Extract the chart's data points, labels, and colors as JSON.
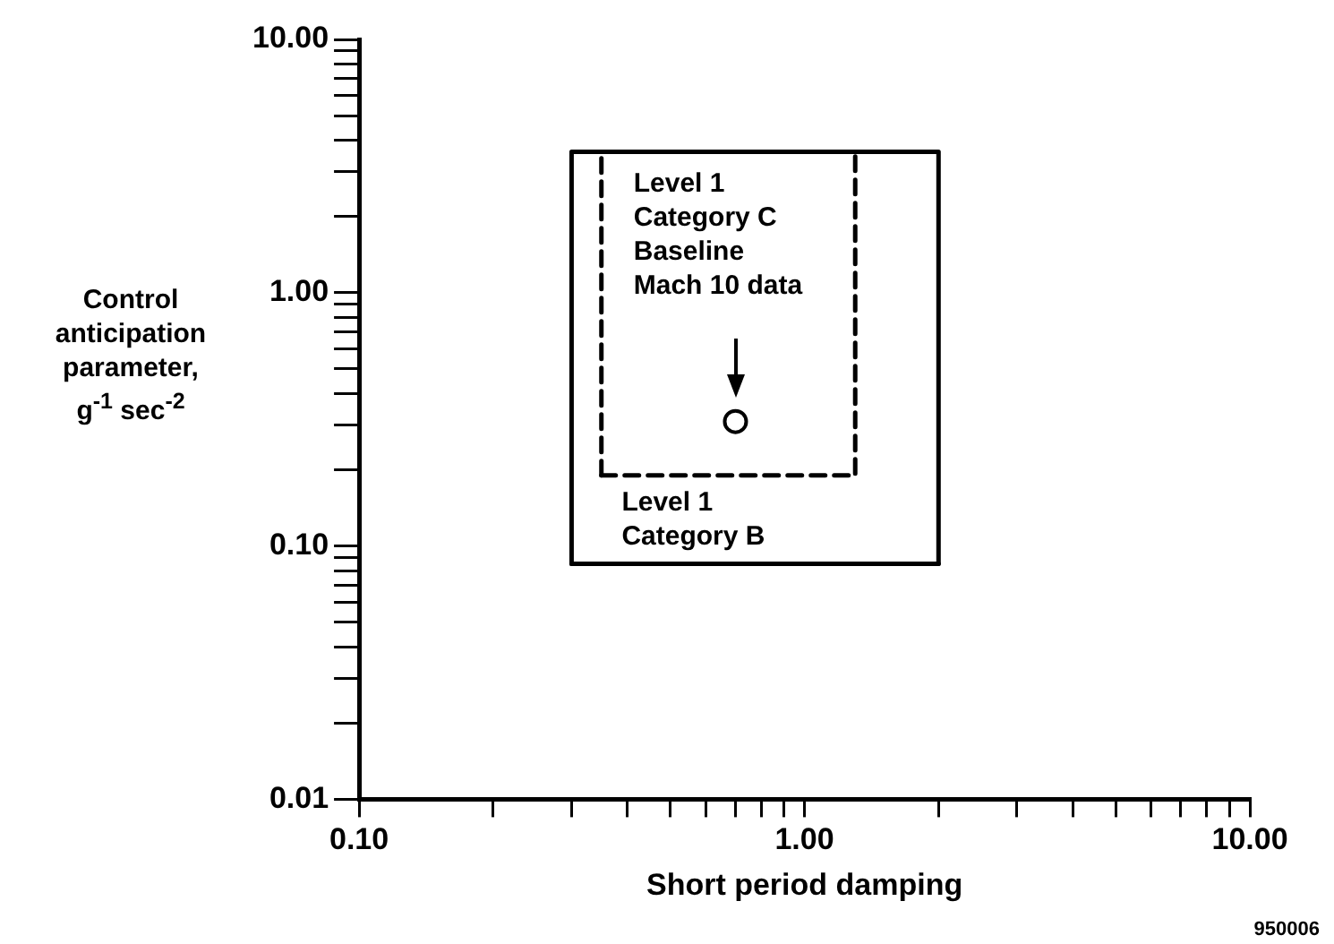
{
  "chart_data": {
    "type": "line",
    "xlabel": "Short period damping",
    "ylabel": "Control\nanticipation\nparameter,\ng$^{-1}$ sec$^{-2}$",
    "log": "xy",
    "grid": false,
    "legend": false,
    "xlim": [
      0.1,
      10
    ],
    "ylim": [
      0.01,
      10
    ],
    "xticks": [
      {
        "value": 0.1,
        "label": "0.10"
      },
      {
        "value": 0.2,
        "label": null
      },
      {
        "value": 0.3,
        "label": null
      },
      {
        "value": 0.4,
        "label": null
      },
      {
        "value": 0.5,
        "label": null
      },
      {
        "value": 0.6,
        "label": null
      },
      {
        "value": 0.7,
        "label": null
      },
      {
        "value": 0.8,
        "label": null
      },
      {
        "value": 0.9,
        "label": null
      },
      {
        "value": 1,
        "label": "1.00"
      },
      {
        "value": 2,
        "label": null
      },
      {
        "value": 3,
        "label": null
      },
      {
        "value": 4,
        "label": null
      },
      {
        "value": 5,
        "label": null
      },
      {
        "value": 6,
        "label": null
      },
      {
        "value": 7,
        "label": null
      },
      {
        "value": 8,
        "label": null
      },
      {
        "value": 9,
        "label": null
      },
      {
        "value": 10,
        "label": "10.00"
      }
    ],
    "yticks": [
      {
        "value": 0.01,
        "label": "0.01"
      },
      {
        "value": 0.02,
        "label": null
      },
      {
        "value": 0.03,
        "label": null
      },
      {
        "value": 0.04,
        "label": null
      },
      {
        "value": 0.05,
        "label": null
      },
      {
        "value": 0.06,
        "label": null
      },
      {
        "value": 0.07,
        "label": null
      },
      {
        "value": 0.08,
        "label": null
      },
      {
        "value": 0.09,
        "label": null
      },
      {
        "value": 0.1,
        "label": "0.10"
      },
      {
        "value": 0.2,
        "label": null
      },
      {
        "value": 0.3,
        "label": null
      },
      {
        "value": 0.4,
        "label": null
      },
      {
        "value": 0.5,
        "label": null
      },
      {
        "value": 0.6,
        "label": null
      },
      {
        "value": 0.7,
        "label": null
      },
      {
        "value": 0.8,
        "label": null
      },
      {
        "value": 0.9,
        "label": null
      },
      {
        "value": 1,
        "label": "1.00"
      },
      {
        "value": 2,
        "label": null
      },
      {
        "value": 3,
        "label": null
      },
      {
        "value": 4,
        "label": null
      },
      {
        "value": 5,
        "label": null
      },
      {
        "value": 6,
        "label": null
      },
      {
        "value": 7,
        "label": null
      },
      {
        "value": 8,
        "label": null
      },
      {
        "value": 9,
        "label": null
      },
      {
        "value": 10,
        "label": "10.00"
      }
    ],
    "series": [
      {
        "color": "#000000",
        "line_style": "solid",
        "x": [
          0.3,
          0.3,
          2,
          2
        ],
        "values": [
          0.085,
          3.6,
          3.6,
          0.085
        ]
      },
      {
        "color": "#000000",
        "line_style": "solid",
        "x": [
          0.3,
          2
        ],
        "values": [
          0.085,
          0.085
        ]
      },
      {
        "color": "#000000",
        "line_style": "dashed",
        "x": [
          0.35,
          0.35,
          1.3,
          1.3
        ],
        "values": [
          0.19,
          3.6,
          3.6,
          0.19
        ]
      },
      {
        "color": "#000000",
        "line_style": "dashed",
        "x": [
          0.35,
          1.3
        ],
        "values": [
          0.19,
          0.19
        ]
      },
      {
        "type": "scatter",
        "color": "#000000",
        "marker": "circle",
        "x": [
          0.7
        ],
        "values": [
          0.31
        ]
      }
    ],
    "annotations": [
      "Level 1 Category C",
      "Baseline Mach 10 data",
      "Level 1 Category B",
      "950006"
    ]
  }
}
